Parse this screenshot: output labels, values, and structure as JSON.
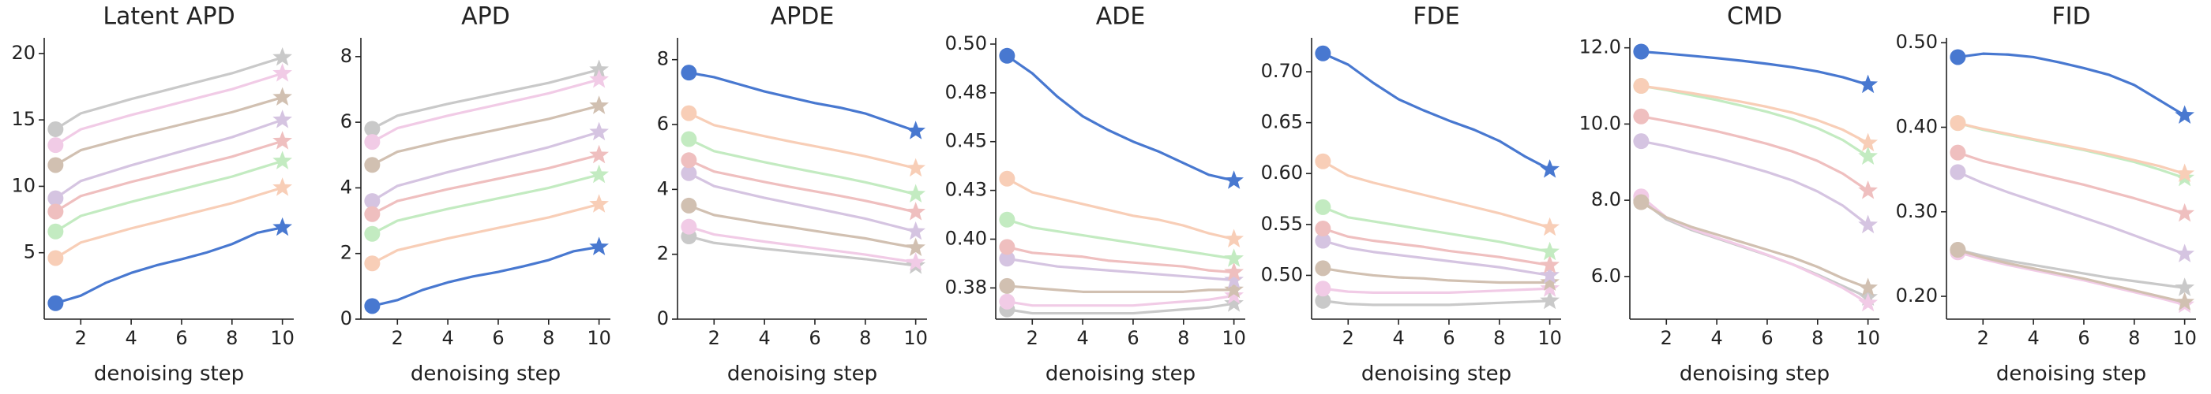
{
  "chart_data": [
    {
      "type": "line",
      "title": "Latent APD",
      "xlabel": "denoising step",
      "x": [
        1,
        2,
        3,
        4,
        5,
        6,
        7,
        8,
        9,
        10
      ],
      "xlim": [
        0.55,
        10.45
      ],
      "xticks": [
        2,
        4,
        6,
        8,
        10
      ],
      "ylim": [
        0,
        21
      ],
      "yticks": [
        5,
        10,
        15,
        20
      ],
      "series": [
        {
          "color": "#4878d0",
          "values": [
            1.2,
            1.77,
            2.74,
            3.48,
            4.05,
            4.51,
            5.02,
            5.65,
            6.5,
            6.9
          ]
        },
        {
          "color": "#f8ceb7",
          "values": [
            4.6,
            5.77,
            6.3,
            6.83,
            7.3,
            7.78,
            8.26,
            8.73,
            9.32,
            9.9
          ]
        },
        {
          "color": "#c3ebc1",
          "values": [
            6.6,
            7.77,
            8.3,
            8.83,
            9.3,
            9.78,
            10.26,
            10.73,
            11.32,
            11.9
          ]
        },
        {
          "color": "#efbfbf",
          "values": [
            8.1,
            9.27,
            9.8,
            10.33,
            10.8,
            11.28,
            11.76,
            12.23,
            12.82,
            13.4
          ]
        },
        {
          "color": "#d5c4e1",
          "values": [
            9.1,
            10.4,
            10.99,
            11.58,
            12.11,
            12.64,
            13.17,
            13.7,
            14.35,
            15.0
          ]
        },
        {
          "color": "#d1c0b1",
          "values": [
            11.6,
            12.72,
            13.23,
            13.74,
            14.2,
            14.66,
            15.12,
            15.58,
            16.14,
            16.7
          ]
        },
        {
          "color": "#f1cbe6",
          "values": [
            13.1,
            14.29,
            14.83,
            15.37,
            15.85,
            16.34,
            16.83,
            17.31,
            17.91,
            18.5
          ]
        },
        {
          "color": "#c9c9c9",
          "values": [
            14.3,
            15.49,
            16.03,
            16.57,
            17.05,
            17.54,
            18.03,
            18.51,
            19.11,
            19.7
          ]
        }
      ]
    },
    {
      "type": "line",
      "title": "APD",
      "xlabel": "denoising step",
      "x": [
        1,
        2,
        3,
        4,
        5,
        6,
        7,
        8,
        9,
        10
      ],
      "xlim": [
        0.55,
        10.45
      ],
      "xticks": [
        2,
        4,
        6,
        8,
        10
      ],
      "ylim": [
        0,
        8.5
      ],
      "yticks": [
        0,
        2,
        4,
        6,
        8
      ],
      "series": [
        {
          "color": "#4878d0",
          "values": [
            0.4,
            0.58,
            0.89,
            1.12,
            1.3,
            1.44,
            1.61,
            1.8,
            2.07,
            2.2
          ]
        },
        {
          "color": "#f8ceb7",
          "values": [
            1.7,
            2.1,
            2.28,
            2.46,
            2.62,
            2.78,
            2.94,
            3.1,
            3.3,
            3.5
          ]
        },
        {
          "color": "#c3ebc1",
          "values": [
            2.6,
            3.0,
            3.18,
            3.36,
            3.52,
            3.68,
            3.84,
            4.0,
            4.2,
            4.4
          ]
        },
        {
          "color": "#efbfbf",
          "values": [
            3.2,
            3.6,
            3.78,
            3.96,
            4.12,
            4.28,
            4.44,
            4.6,
            4.8,
            5.0
          ]
        },
        {
          "color": "#d5c4e1",
          "values": [
            3.6,
            4.06,
            4.27,
            4.48,
            4.67,
            4.86,
            5.05,
            5.24,
            5.47,
            5.7
          ]
        },
        {
          "color": "#d1c0b1",
          "values": [
            4.7,
            5.1,
            5.28,
            5.46,
            5.62,
            5.78,
            5.94,
            6.1,
            6.3,
            6.5
          ]
        },
        {
          "color": "#f1cbe6",
          "values": [
            5.4,
            5.82,
            6.01,
            6.2,
            6.37,
            6.54,
            6.71,
            6.88,
            7.09,
            7.3
          ]
        },
        {
          "color": "#c9c9c9",
          "values": [
            5.8,
            6.2,
            6.38,
            6.56,
            6.72,
            6.88,
            7.04,
            7.2,
            7.4,
            7.6
          ]
        }
      ]
    },
    {
      "type": "line",
      "title": "APDE",
      "xlabel": "denoising step",
      "x": [
        1,
        2,
        3,
        4,
        5,
        6,
        7,
        8,
        9,
        10
      ],
      "xlim": [
        0.55,
        10.45
      ],
      "xticks": [
        2,
        4,
        6,
        8,
        10
      ],
      "ylim": [
        0,
        8.6
      ],
      "yticks": [
        0,
        2,
        4,
        6,
        8
      ],
      "series": [
        {
          "color": "#4878d0",
          "values": [
            7.6,
            7.46,
            7.24,
            7.02,
            6.84,
            6.66,
            6.52,
            6.34,
            6.07,
            5.8
          ]
        },
        {
          "color": "#f8ceb7",
          "values": [
            6.35,
            5.98,
            5.81,
            5.64,
            5.48,
            5.33,
            5.18,
            5.02,
            4.84,
            4.65
          ]
        },
        {
          "color": "#c3ebc1",
          "values": [
            5.55,
            5.18,
            5.01,
            4.84,
            4.68,
            4.53,
            4.38,
            4.22,
            4.04,
            3.85
          ]
        },
        {
          "color": "#efbfbf",
          "values": [
            4.9,
            4.55,
            4.39,
            4.23,
            4.08,
            3.94,
            3.8,
            3.65,
            3.48,
            3.3
          ]
        },
        {
          "color": "#d5c4e1",
          "values": [
            4.5,
            4.1,
            3.92,
            3.74,
            3.58,
            3.42,
            3.26,
            3.1,
            2.9,
            2.7
          ]
        },
        {
          "color": "#d1c0b1",
          "values": [
            3.5,
            3.21,
            3.08,
            2.95,
            2.84,
            2.72,
            2.6,
            2.49,
            2.34,
            2.2
          ]
        },
        {
          "color": "#f1cbe6",
          "values": [
            2.85,
            2.61,
            2.5,
            2.39,
            2.29,
            2.19,
            2.09,
            1.99,
            1.87,
            1.75
          ]
        },
        {
          "color": "#c9c9c9",
          "values": [
            2.55,
            2.35,
            2.26,
            2.17,
            2.09,
            2.01,
            1.93,
            1.85,
            1.75,
            1.65
          ]
        }
      ]
    },
    {
      "type": "line",
      "title": "ADE",
      "xlabel": "denoising step",
      "x": [
        1,
        2,
        3,
        4,
        5,
        6,
        7,
        8,
        9,
        10
      ],
      "xlim": [
        0.55,
        10.45
      ],
      "xticks": [
        2,
        4,
        6,
        8,
        10
      ],
      "ylim": [
        0.359,
        0.502
      ],
      "yticks": [
        {
          "value": 0.375,
          "label": "0.38"
        },
        {
          "value": 0.4,
          "label": "0.40"
        },
        {
          "value": 0.425,
          "label": "0.43"
        },
        0.45,
        {
          "value": 0.475,
          "label": "0.48"
        },
        {
          "value": 0.5,
          "label": "0.50"
        }
      ],
      "series": [
        {
          "color": "#4878d0",
          "values": [
            0.494,
            0.485,
            0.473,
            0.463,
            0.456,
            0.45,
            0.445,
            0.439,
            0.433,
            0.43
          ]
        },
        {
          "color": "#f8ceb7",
          "values": [
            0.431,
            0.424,
            0.421,
            0.418,
            0.415,
            0.412,
            0.41,
            0.407,
            0.403,
            0.4
          ]
        },
        {
          "color": "#c3ebc1",
          "values": [
            0.41,
            0.406,
            0.404,
            0.402,
            0.4,
            0.398,
            0.396,
            0.394,
            0.392,
            0.39
          ]
        },
        {
          "color": "#efbfbf",
          "values": [
            0.396,
            0.393,
            0.392,
            0.391,
            0.389,
            0.388,
            0.387,
            0.386,
            0.384,
            0.383
          ]
        },
        {
          "color": "#d5c4e1",
          "values": [
            0.39,
            0.388,
            0.386,
            0.385,
            0.384,
            0.383,
            0.382,
            0.381,
            0.38,
            0.379
          ]
        },
        {
          "color": "#d1c0b1",
          "values": [
            0.376,
            0.375,
            0.374,
            0.373,
            0.373,
            0.373,
            0.373,
            0.373,
            0.374,
            0.374
          ]
        },
        {
          "color": "#f1cbe6",
          "values": [
            0.368,
            0.366,
            0.366,
            0.366,
            0.366,
            0.366,
            0.367,
            0.368,
            0.369,
            0.371
          ]
        },
        {
          "color": "#c9c9c9",
          "values": [
            0.364,
            0.362,
            0.362,
            0.362,
            0.362,
            0.362,
            0.363,
            0.364,
            0.365,
            0.367
          ]
        }
      ]
    },
    {
      "type": "line",
      "title": "FDE",
      "xlabel": "denoising step",
      "x": [
        1,
        2,
        3,
        4,
        5,
        6,
        7,
        8,
        9,
        10
      ],
      "xlim": [
        0.55,
        10.45
      ],
      "xticks": [
        2,
        4,
        6,
        8,
        10
      ],
      "ylim": [
        0.457,
        0.731
      ],
      "yticks": [
        {
          "value": 0.5,
          "label": "0.50"
        },
        0.55,
        {
          "value": 0.6,
          "label": "0.60"
        },
        0.65,
        {
          "value": 0.7,
          "label": "0.70"
        }
      ],
      "series": [
        {
          "color": "#4878d0",
          "values": [
            0.718,
            0.707,
            0.689,
            0.673,
            0.662,
            0.652,
            0.643,
            0.632,
            0.617,
            0.604
          ]
        },
        {
          "color": "#f8ceb7",
          "values": [
            0.612,
            0.598,
            0.591,
            0.585,
            0.579,
            0.573,
            0.567,
            0.561,
            0.554,
            0.547
          ]
        },
        {
          "color": "#c3ebc1",
          "values": [
            0.567,
            0.557,
            0.553,
            0.549,
            0.545,
            0.541,
            0.537,
            0.533,
            0.528,
            0.523
          ]
        },
        {
          "color": "#efbfbf",
          "values": [
            0.546,
            0.538,
            0.534,
            0.531,
            0.528,
            0.524,
            0.521,
            0.518,
            0.514,
            0.51
          ]
        },
        {
          "color": "#d5c4e1",
          "values": [
            0.534,
            0.527,
            0.523,
            0.52,
            0.517,
            0.514,
            0.511,
            0.508,
            0.504,
            0.5
          ]
        },
        {
          "color": "#d1c0b1",
          "values": [
            0.507,
            0.503,
            0.5,
            0.498,
            0.497,
            0.495,
            0.494,
            0.493,
            0.493,
            0.493
          ]
        },
        {
          "color": "#f1cbe6",
          "values": [
            0.487,
            0.484,
            0.483,
            0.483,
            0.483,
            0.483,
            0.484,
            0.485,
            0.486,
            0.487
          ]
        },
        {
          "color": "#c9c9c9",
          "values": [
            0.475,
            0.472,
            0.471,
            0.471,
            0.471,
            0.471,
            0.472,
            0.473,
            0.474,
            0.475
          ]
        }
      ]
    },
    {
      "type": "line",
      "title": "CMD",
      "xlabel": "denoising step",
      "x": [
        1,
        2,
        3,
        4,
        5,
        6,
        7,
        8,
        9,
        10
      ],
      "xlim": [
        0.55,
        10.45
      ],
      "xticks": [
        2,
        4,
        6,
        8,
        10
      ],
      "ylim": [
        4.88,
        12.2
      ],
      "yticks": [
        {
          "value": 6,
          "label": "6.0"
        },
        {
          "value": 8,
          "label": "8.0"
        },
        {
          "value": 10,
          "label": "10.0"
        },
        {
          "value": 12,
          "label": "12.0"
        }
      ],
      "series": [
        {
          "color": "#4878d0",
          "values": [
            11.9,
            11.85,
            11.79,
            11.73,
            11.66,
            11.58,
            11.49,
            11.38,
            11.23,
            11.03
          ]
        },
        {
          "color": "#f8ceb7",
          "values": [
            11.0,
            10.91,
            10.81,
            10.7,
            10.58,
            10.45,
            10.3,
            10.1,
            9.85,
            9.5
          ]
        },
        {
          "color": "#c3ebc1",
          "values": [
            11.0,
            10.89,
            10.76,
            10.63,
            10.48,
            10.32,
            10.13,
            9.89,
            9.58,
            9.15
          ]
        },
        {
          "color": "#efbfbf",
          "values": [
            10.2,
            10.08,
            9.95,
            9.81,
            9.65,
            9.48,
            9.28,
            9.03,
            8.7,
            8.25
          ]
        },
        {
          "color": "#d5c4e1",
          "values": [
            9.55,
            9.42,
            9.26,
            9.11,
            8.93,
            8.74,
            8.52,
            8.23,
            7.86,
            7.35
          ]
        },
        {
          "color": "#d1c0b1",
          "values": [
            7.95,
            7.55,
            7.3,
            7.1,
            6.9,
            6.7,
            6.5,
            6.25,
            5.95,
            5.7
          ]
        },
        {
          "color": "#f1cbe6",
          "values": [
            8.1,
            7.55,
            7.25,
            7.02,
            6.8,
            6.57,
            6.32,
            6.02,
            5.7,
            5.3
          ]
        },
        {
          "color": "#c9c9c9",
          "values": [
            8.0,
            7.5,
            7.22,
            7.0,
            6.78,
            6.56,
            6.32,
            6.05,
            5.75,
            5.45
          ]
        }
      ]
    },
    {
      "type": "line",
      "title": "FID",
      "xlabel": "denoising step",
      "x": [
        1,
        2,
        3,
        4,
        5,
        6,
        7,
        8,
        9,
        10
      ],
      "xlim": [
        0.55,
        10.45
      ],
      "xticks": [
        2,
        4,
        6,
        8,
        10
      ],
      "ylim": [
        0.173,
        0.503
      ],
      "yticks": [
        {
          "value": 0.2,
          "label": "0.20"
        },
        {
          "value": 0.3,
          "label": "0.30"
        },
        {
          "value": 0.4,
          "label": "0.40"
        },
        {
          "value": 0.5,
          "label": "0.50"
        }
      ],
      "series": [
        {
          "color": "#4878d0",
          "values": [
            0.483,
            0.487,
            0.486,
            0.483,
            0.477,
            0.47,
            0.462,
            0.45,
            0.432,
            0.414
          ]
        },
        {
          "color": "#f8ceb7",
          "values": [
            0.405,
            0.398,
            0.392,
            0.386,
            0.38,
            0.374,
            0.368,
            0.361,
            0.354,
            0.345
          ]
        },
        {
          "color": "#c3ebc1",
          "values": [
            0.405,
            0.397,
            0.391,
            0.385,
            0.379,
            0.373,
            0.366,
            0.359,
            0.35,
            0.34
          ]
        },
        {
          "color": "#efbfbf",
          "values": [
            0.37,
            0.36,
            0.353,
            0.346,
            0.339,
            0.332,
            0.324,
            0.316,
            0.307,
            0.298
          ]
        },
        {
          "color": "#d5c4e1",
          "values": [
            0.347,
            0.334,
            0.323,
            0.313,
            0.303,
            0.293,
            0.283,
            0.272,
            0.261,
            0.25
          ]
        },
        {
          "color": "#d1c0b1",
          "values": [
            0.255,
            0.246,
            0.239,
            0.233,
            0.227,
            0.221,
            0.214,
            0.207,
            0.2,
            0.193
          ]
        },
        {
          "color": "#f1cbe6",
          "values": [
            0.252,
            0.244,
            0.237,
            0.231,
            0.225,
            0.219,
            0.212,
            0.205,
            0.198,
            0.19
          ]
        },
        {
          "color": "#c9c9c9",
          "values": [
            0.255,
            0.248,
            0.242,
            0.237,
            0.232,
            0.227,
            0.222,
            0.218,
            0.214,
            0.21
          ]
        }
      ]
    }
  ]
}
